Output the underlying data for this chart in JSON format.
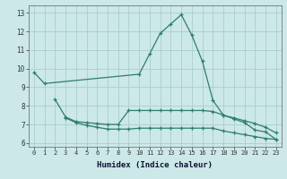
{
  "x": [
    0,
    1,
    2,
    3,
    4,
    5,
    6,
    7,
    8,
    9,
    10,
    11,
    12,
    13,
    14,
    15,
    16,
    17,
    18,
    19,
    20,
    21,
    22,
    23
  ],
  "y1": [
    9.8,
    9.2,
    null,
    null,
    null,
    null,
    null,
    null,
    null,
    null,
    9.7,
    10.8,
    11.9,
    12.4,
    12.9,
    11.8,
    10.4,
    8.3,
    7.5,
    7.3,
    7.1,
    6.7,
    6.6,
    6.2
  ],
  "y2": [
    null,
    null,
    8.35,
    7.4,
    7.15,
    7.1,
    7.05,
    7.0,
    7.0,
    7.75,
    7.75,
    7.75,
    7.75,
    7.75,
    7.75,
    7.75,
    7.75,
    7.7,
    7.5,
    7.35,
    7.2,
    7.05,
    6.85,
    6.55
  ],
  "y3": [
    null,
    null,
    null,
    7.35,
    7.1,
    6.95,
    6.85,
    6.75,
    6.75,
    6.75,
    6.8,
    6.8,
    6.8,
    6.8,
    6.8,
    6.8,
    6.8,
    6.8,
    6.65,
    6.55,
    6.45,
    6.35,
    6.25,
    6.2
  ],
  "color": "#2e7d6e",
  "bg_color": "#cce8e8",
  "grid_color": "#aacece",
  "xlabel": "Humidex (Indice chaleur)",
  "xlim": [
    -0.5,
    23.5
  ],
  "ylim": [
    5.8,
    13.4
  ],
  "yticks": [
    6,
    7,
    8,
    9,
    10,
    11,
    12,
    13
  ],
  "xticks": [
    0,
    1,
    2,
    3,
    4,
    5,
    6,
    7,
    8,
    9,
    10,
    11,
    12,
    13,
    14,
    15,
    16,
    17,
    18,
    19,
    20,
    21,
    22,
    23
  ]
}
